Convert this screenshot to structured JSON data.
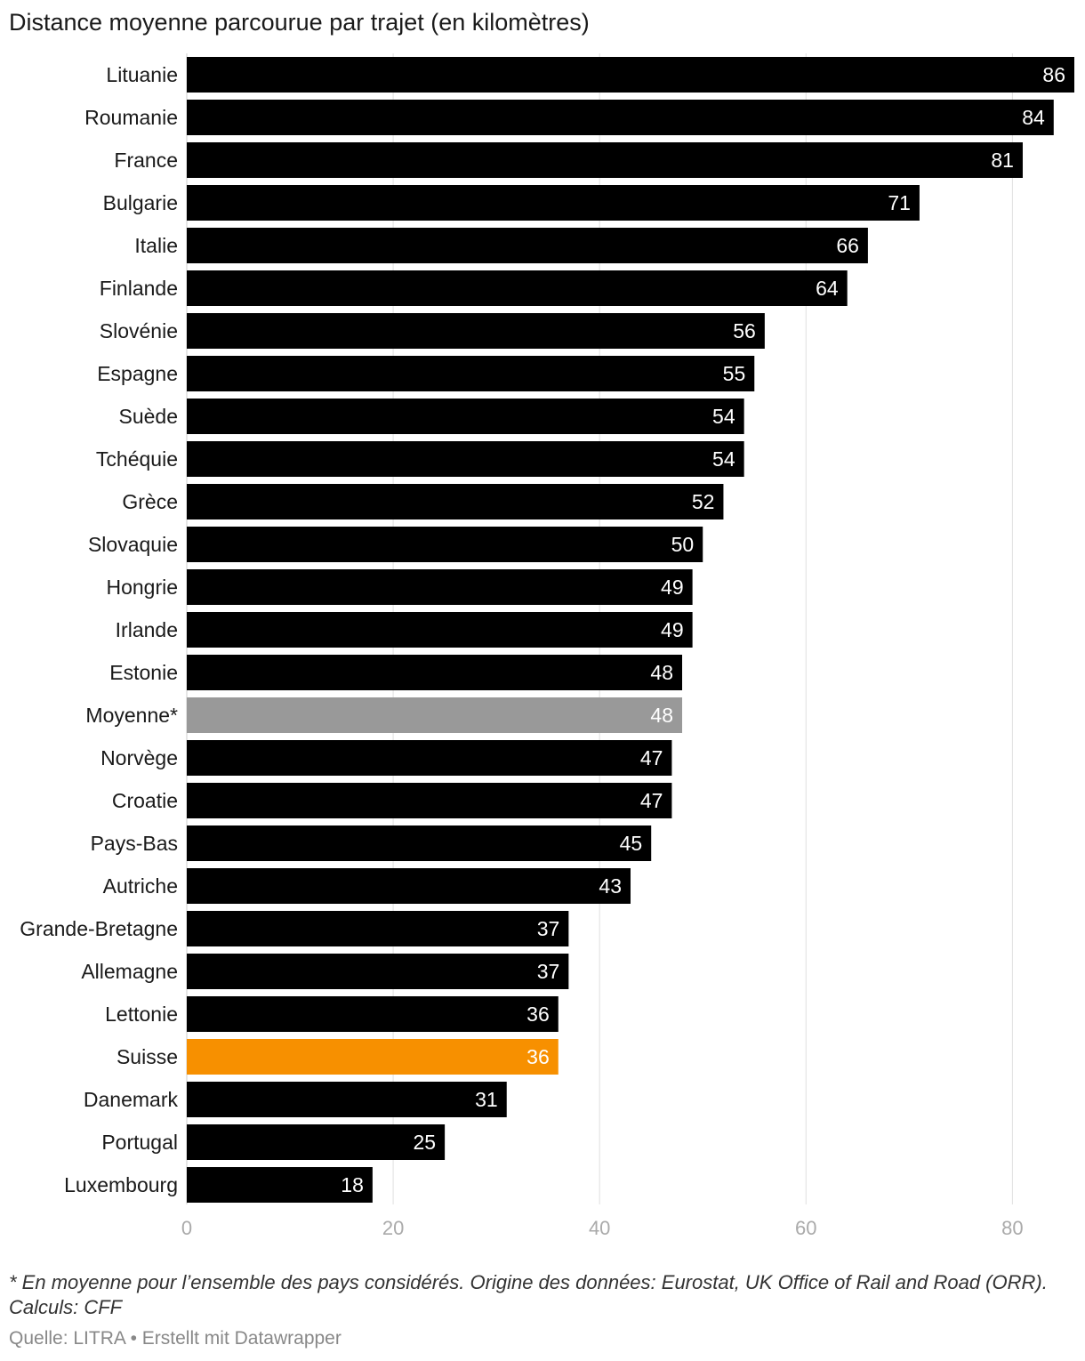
{
  "title": "Distance moyenne parcourue par trajet (en kilomètres)",
  "notes": "* En moyenne pour l’ensemble des pays considérés. Origine des données: Eurostat, UK Office of Rail and Road (ORR). Calculs: CFF",
  "source": {
    "label": "Quelle: LITRA",
    "separator": "•",
    "credit": "Erstellt mit Datawrapper"
  },
  "colors": {
    "default": "#000000",
    "average": "#999999",
    "highlight": "#f79000",
    "grid": "#e0e0e0",
    "tick_text": "#aaaaaa",
    "value_text": "#ffffff",
    "label_text": "#1a1a1a"
  },
  "chart_data": {
    "type": "bar",
    "orientation": "horizontal",
    "categories": [
      "Lituanie",
      "Roumanie",
      "France",
      "Bulgarie",
      "Italie",
      "Finlande",
      "Slovénie",
      "Espagne",
      "Suède",
      "Tchéquie",
      "Grèce",
      "Slovaquie",
      "Hongrie",
      "Irlande",
      "Estonie",
      "Moyenne*",
      "Norvège",
      "Croatie",
      "Pays-Bas",
      "Autriche",
      "Grande-Bretagne",
      "Allemagne",
      "Lettonie",
      "Suisse",
      "Danemark",
      "Portugal",
      "Luxembourg"
    ],
    "values": [
      86,
      84,
      81,
      71,
      66,
      64,
      56,
      55,
      54,
      54,
      52,
      50,
      49,
      49,
      48,
      48,
      47,
      47,
      45,
      43,
      37,
      37,
      36,
      36,
      31,
      25,
      18
    ],
    "highlight": {
      "Moyenne*": "average",
      "Suisse": "highlight"
    },
    "xlim": [
      0,
      86
    ],
    "xticks": [
      0,
      20,
      40,
      60,
      80
    ],
    "grid": true,
    "data_labels": true
  }
}
